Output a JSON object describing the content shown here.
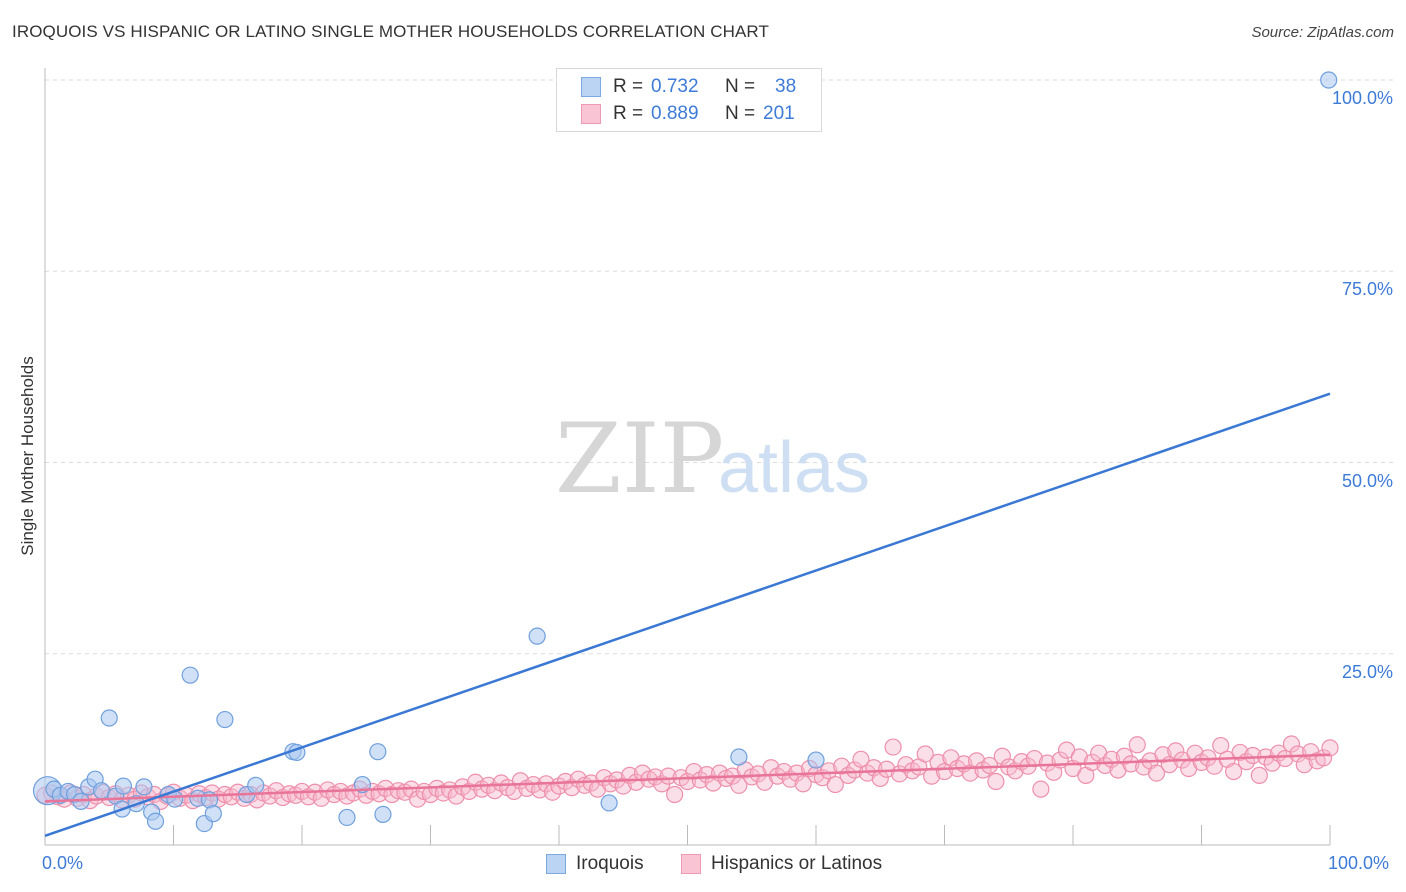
{
  "title": "IROQUOIS VS HISPANIC OR LATINO SINGLE MOTHER HOUSEHOLDS CORRELATION CHART",
  "source": "Source: ZipAtlas.com",
  "watermark": {
    "zip": "ZIP",
    "atlas": "atlas"
  },
  "legend": {
    "series1": {
      "r_label": "R =",
      "r_value": "0.732",
      "n_label": "N =",
      "n_value": "38"
    },
    "series2": {
      "r_label": "R =",
      "r_value": "0.889",
      "n_label": "N =",
      "n_value": "201"
    }
  },
  "chart_data": {
    "type": "scatter",
    "title": "IROQUOIS VS HISPANIC OR LATINO SINGLE MOTHER HOUSEHOLDS CORRELATION CHART",
    "xlabel": "",
    "ylabel": "Single Mother Households",
    "xlim": [
      0,
      100
    ],
    "ylim": [
      0,
      100
    ],
    "x_tick_labels": [
      "0.0%",
      "100.0%"
    ],
    "y_tick_labels": [
      "100.0%",
      "75.0%",
      "50.0%",
      "25.0%"
    ],
    "y_ticks": [
      100,
      75,
      50,
      25
    ],
    "legend_position": "bottom-center",
    "colors": {
      "iroquois_fill": "#aac8f0",
      "iroquois_stroke": "#6f9fdd",
      "iroquois_line": "#3a78d4",
      "hispanic_fill": "#f7b9cb",
      "hispanic_stroke": "#ee8fac",
      "hispanic_line": "#e8749a"
    },
    "series": [
      {
        "name": "Iroquois",
        "r": 0.732,
        "n": 38,
        "trend": {
          "x": [
            0,
            100
          ],
          "y": [
            1.2,
            59
          ]
        },
        "points": [
          {
            "x": 0.2,
            "y": 7.1
          },
          {
            "x": 0.7,
            "y": 7.3
          },
          {
            "x": 1.2,
            "y": 6.5
          },
          {
            "x": 1.8,
            "y": 7
          },
          {
            "x": 2.3,
            "y": 6.6
          },
          {
            "x": 2.8,
            "y": 5.7
          },
          {
            "x": 3.4,
            "y": 7.6
          },
          {
            "x": 3.9,
            "y": 8.6
          },
          {
            "x": 4.4,
            "y": 7.1
          },
          {
            "x": 5.0,
            "y": 16.6
          },
          {
            "x": 5.5,
            "y": 6.4
          },
          {
            "x": 6.0,
            "y": 4.7
          },
          {
            "x": 6.1,
            "y": 7.7
          },
          {
            "x": 7.1,
            "y": 5.4
          },
          {
            "x": 7.7,
            "y": 7.6
          },
          {
            "x": 8.3,
            "y": 4.3
          },
          {
            "x": 8.6,
            "y": 3.1
          },
          {
            "x": 9.6,
            "y": 6.6
          },
          {
            "x": 10.1,
            "y": 6.0
          },
          {
            "x": 11.3,
            "y": 22.2
          },
          {
            "x": 11.9,
            "y": 6.1
          },
          {
            "x": 12.4,
            "y": 2.8
          },
          {
            "x": 12.8,
            "y": 5.9
          },
          {
            "x": 13.1,
            "y": 4.1
          },
          {
            "x": 14.0,
            "y": 16.4
          },
          {
            "x": 15.7,
            "y": 6.6
          },
          {
            "x": 16.4,
            "y": 7.8
          },
          {
            "x": 19.3,
            "y": 12.2
          },
          {
            "x": 19.6,
            "y": 12.1
          },
          {
            "x": 23.5,
            "y": 3.6
          },
          {
            "x": 24.7,
            "y": 7.9
          },
          {
            "x": 25.9,
            "y": 12.2
          },
          {
            "x": 26.3,
            "y": 4.0
          },
          {
            "x": 38.3,
            "y": 27.3
          },
          {
            "x": 43.9,
            "y": 5.5
          },
          {
            "x": 54.0,
            "y": 11.5
          },
          {
            "x": 60.0,
            "y": 11.1
          },
          {
            "x": 99.9,
            "y": 100
          }
        ]
      },
      {
        "name": "Hispanics or Latinos",
        "r": 0.889,
        "n": 201,
        "trend": {
          "x": [
            0,
            100
          ],
          "y": [
            5.7,
            11.8
          ]
        },
        "points": [
          {
            "x": 0.5,
            "y": 6.8
          },
          {
            "x": 1.0,
            "y": 6.3
          },
          {
            "x": 1.5,
            "y": 6.0
          },
          {
            "x": 2.0,
            "y": 6.8
          },
          {
            "x": 2.5,
            "y": 6.1
          },
          {
            "x": 3.0,
            "y": 6.6
          },
          {
            "x": 3.5,
            "y": 5.8
          },
          {
            "x": 4.0,
            "y": 6.4
          },
          {
            "x": 4.5,
            "y": 6.9
          },
          {
            "x": 5.0,
            "y": 6.2
          },
          {
            "x": 5.5,
            "y": 6.7
          },
          {
            "x": 6.0,
            "y": 5.9
          },
          {
            "x": 6.5,
            "y": 6.5
          },
          {
            "x": 7.0,
            "y": 6.0
          },
          {
            "x": 7.5,
            "y": 6.8
          },
          {
            "x": 8.0,
            "y": 6.3
          },
          {
            "x": 8.5,
            "y": 6.6
          },
          {
            "x": 9.0,
            "y": 5.7
          },
          {
            "x": 9.5,
            "y": 6.4
          },
          {
            "x": 10.0,
            "y": 6.9
          },
          {
            "x": 10.5,
            "y": 6.1
          },
          {
            "x": 11.0,
            "y": 6.5
          },
          {
            "x": 11.5,
            "y": 5.8
          },
          {
            "x": 12.0,
            "y": 6.7
          },
          {
            "x": 12.5,
            "y": 6.2
          },
          {
            "x": 13.0,
            "y": 6.8
          },
          {
            "x": 13.5,
            "y": 6.0
          },
          {
            "x": 14.0,
            "y": 6.6
          },
          {
            "x": 14.5,
            "y": 6.3
          },
          {
            "x": 15.0,
            "y": 6.9
          },
          {
            "x": 15.5,
            "y": 6.1
          },
          {
            "x": 16.0,
            "y": 6.6
          },
          {
            "x": 16.5,
            "y": 5.9
          },
          {
            "x": 17.0,
            "y": 6.8
          },
          {
            "x": 17.5,
            "y": 6.4
          },
          {
            "x": 18.0,
            "y": 7.1
          },
          {
            "x": 18.5,
            "y": 6.2
          },
          {
            "x": 19.0,
            "y": 6.7
          },
          {
            "x": 19.5,
            "y": 6.5
          },
          {
            "x": 20.0,
            "y": 7.0
          },
          {
            "x": 20.5,
            "y": 6.3
          },
          {
            "x": 21.0,
            "y": 6.9
          },
          {
            "x": 21.5,
            "y": 6.1
          },
          {
            "x": 22.0,
            "y": 7.2
          },
          {
            "x": 22.5,
            "y": 6.6
          },
          {
            "x": 23.0,
            "y": 7.0
          },
          {
            "x": 23.5,
            "y": 6.4
          },
          {
            "x": 24.0,
            "y": 6.8
          },
          {
            "x": 24.5,
            "y": 7.3
          },
          {
            "x": 25.0,
            "y": 6.5
          },
          {
            "x": 25.5,
            "y": 7.0
          },
          {
            "x": 26.0,
            "y": 6.7
          },
          {
            "x": 26.5,
            "y": 7.4
          },
          {
            "x": 27.0,
            "y": 6.6
          },
          {
            "x": 27.5,
            "y": 7.1
          },
          {
            "x": 28.0,
            "y": 6.9
          },
          {
            "x": 28.5,
            "y": 7.3
          },
          {
            "x": 29.0,
            "y": 6.0
          },
          {
            "x": 29.5,
            "y": 7.0
          },
          {
            "x": 30.0,
            "y": 6.6
          },
          {
            "x": 30.5,
            "y": 7.4
          },
          {
            "x": 31.0,
            "y": 6.8
          },
          {
            "x": 31.5,
            "y": 7.2
          },
          {
            "x": 32.0,
            "y": 6.4
          },
          {
            "x": 32.5,
            "y": 7.6
          },
          {
            "x": 33.0,
            "y": 7.0
          },
          {
            "x": 33.5,
            "y": 8.2
          },
          {
            "x": 34.0,
            "y": 7.3
          },
          {
            "x": 34.5,
            "y": 7.8
          },
          {
            "x": 35.0,
            "y": 7.1
          },
          {
            "x": 35.5,
            "y": 8.1
          },
          {
            "x": 36.0,
            "y": 7.5
          },
          {
            "x": 36.5,
            "y": 7.0
          },
          {
            "x": 37.0,
            "y": 8.4
          },
          {
            "x": 37.5,
            "y": 7.4
          },
          {
            "x": 38.0,
            "y": 7.9
          },
          {
            "x": 38.5,
            "y": 7.2
          },
          {
            "x": 39.0,
            "y": 8.0
          },
          {
            "x": 39.5,
            "y": 6.9
          },
          {
            "x": 40.0,
            "y": 7.7
          },
          {
            "x": 40.5,
            "y": 8.3
          },
          {
            "x": 41.0,
            "y": 7.5
          },
          {
            "x": 41.5,
            "y": 8.6
          },
          {
            "x": 42.0,
            "y": 7.8
          },
          {
            "x": 42.5,
            "y": 8.1
          },
          {
            "x": 43.0,
            "y": 7.3
          },
          {
            "x": 43.5,
            "y": 8.8
          },
          {
            "x": 44.0,
            "y": 8.0
          },
          {
            "x": 44.5,
            "y": 8.5
          },
          {
            "x": 45.0,
            "y": 7.7
          },
          {
            "x": 45.5,
            "y": 9.1
          },
          {
            "x": 46.0,
            "y": 8.2
          },
          {
            "x": 46.5,
            "y": 9.4
          },
          {
            "x": 47.0,
            "y": 8.6
          },
          {
            "x": 47.5,
            "y": 8.9
          },
          {
            "x": 48.0,
            "y": 8.0
          },
          {
            "x": 48.5,
            "y": 9.0
          },
          {
            "x": 49.0,
            "y": 6.6
          },
          {
            "x": 49.5,
            "y": 8.8
          },
          {
            "x": 50.0,
            "y": 8.3
          },
          {
            "x": 50.5,
            "y": 9.6
          },
          {
            "x": 51.0,
            "y": 8.5
          },
          {
            "x": 51.5,
            "y": 9.2
          },
          {
            "x": 52.0,
            "y": 8.1
          },
          {
            "x": 52.5,
            "y": 9.4
          },
          {
            "x": 53.0,
            "y": 8.7
          },
          {
            "x": 53.5,
            "y": 9.0
          },
          {
            "x": 54.0,
            "y": 7.8
          },
          {
            "x": 54.5,
            "y": 9.8
          },
          {
            "x": 55.0,
            "y": 8.9
          },
          {
            "x": 55.5,
            "y": 9.3
          },
          {
            "x": 56.0,
            "y": 8.2
          },
          {
            "x": 56.5,
            "y": 10.1
          },
          {
            "x": 57.0,
            "y": 9.0
          },
          {
            "x": 57.5,
            "y": 9.6
          },
          {
            "x": 58.0,
            "y": 8.6
          },
          {
            "x": 58.5,
            "y": 9.4
          },
          {
            "x": 59.0,
            "y": 8.0
          },
          {
            "x": 59.5,
            "y": 10.0
          },
          {
            "x": 60.0,
            "y": 9.2
          },
          {
            "x": 60.5,
            "y": 8.8
          },
          {
            "x": 61.0,
            "y": 9.7
          },
          {
            "x": 61.5,
            "y": 7.9
          },
          {
            "x": 62.0,
            "y": 10.3
          },
          {
            "x": 62.5,
            "y": 9.1
          },
          {
            "x": 63.0,
            "y": 9.8
          },
          {
            "x": 63.5,
            "y": 11.2
          },
          {
            "x": 64.0,
            "y": 9.4
          },
          {
            "x": 64.5,
            "y": 10.1
          },
          {
            "x": 65.0,
            "y": 8.7
          },
          {
            "x": 65.5,
            "y": 9.9
          },
          {
            "x": 66.0,
            "y": 12.8
          },
          {
            "x": 66.5,
            "y": 9.3
          },
          {
            "x": 67.0,
            "y": 10.5
          },
          {
            "x": 67.5,
            "y": 9.7
          },
          {
            "x": 68.0,
            "y": 10.2
          },
          {
            "x": 68.5,
            "y": 11.9
          },
          {
            "x": 69.0,
            "y": 9.0
          },
          {
            "x": 69.5,
            "y": 10.8
          },
          {
            "x": 70.0,
            "y": 9.6
          },
          {
            "x": 70.5,
            "y": 11.4
          },
          {
            "x": 71.0,
            "y": 10.0
          },
          {
            "x": 71.5,
            "y": 10.6
          },
          {
            "x": 72.0,
            "y": 9.4
          },
          {
            "x": 72.5,
            "y": 11.0
          },
          {
            "x": 73.0,
            "y": 9.8
          },
          {
            "x": 73.5,
            "y": 10.4
          },
          {
            "x": 74.0,
            "y": 8.3
          },
          {
            "x": 74.5,
            "y": 11.6
          },
          {
            "x": 75.0,
            "y": 10.2
          },
          {
            "x": 75.5,
            "y": 9.7
          },
          {
            "x": 76.0,
            "y": 10.9
          },
          {
            "x": 76.5,
            "y": 10.3
          },
          {
            "x": 77.0,
            "y": 11.3
          },
          {
            "x": 77.5,
            "y": 7.3
          },
          {
            "x": 78.0,
            "y": 10.7
          },
          {
            "x": 78.5,
            "y": 9.5
          },
          {
            "x": 79.0,
            "y": 11.1
          },
          {
            "x": 79.5,
            "y": 12.4
          },
          {
            "x": 80.0,
            "y": 10.0
          },
          {
            "x": 80.5,
            "y": 11.5
          },
          {
            "x": 81.0,
            "y": 9.1
          },
          {
            "x": 81.5,
            "y": 10.8
          },
          {
            "x": 82.0,
            "y": 12.0
          },
          {
            "x": 82.5,
            "y": 10.4
          },
          {
            "x": 83.0,
            "y": 11.2
          },
          {
            "x": 83.5,
            "y": 9.8
          },
          {
            "x": 84.0,
            "y": 11.6
          },
          {
            "x": 84.5,
            "y": 10.6
          },
          {
            "x": 85.0,
            "y": 13.1
          },
          {
            "x": 85.5,
            "y": 10.2
          },
          {
            "x": 86.0,
            "y": 11.0
          },
          {
            "x": 86.5,
            "y": 9.4
          },
          {
            "x": 87.0,
            "y": 11.8
          },
          {
            "x": 87.5,
            "y": 10.5
          },
          {
            "x": 88.0,
            "y": 12.3
          },
          {
            "x": 88.5,
            "y": 11.1
          },
          {
            "x": 89.0,
            "y": 10.0
          },
          {
            "x": 89.5,
            "y": 12.0
          },
          {
            "x": 90.0,
            "y": 10.8
          },
          {
            "x": 90.5,
            "y": 11.4
          },
          {
            "x": 91.0,
            "y": 10.3
          },
          {
            "x": 91.5,
            "y": 13.0
          },
          {
            "x": 92.0,
            "y": 11.2
          },
          {
            "x": 92.5,
            "y": 9.6
          },
          {
            "x": 93.0,
            "y": 12.1
          },
          {
            "x": 93.5,
            "y": 10.9
          },
          {
            "x": 94.0,
            "y": 11.7
          },
          {
            "x": 94.5,
            "y": 9.1
          },
          {
            "x": 95.0,
            "y": 11.5
          },
          {
            "x": 95.5,
            "y": 10.7
          },
          {
            "x": 96.0,
            "y": 12.0
          },
          {
            "x": 96.5,
            "y": 11.3
          },
          {
            "x": 97.0,
            "y": 13.2
          },
          {
            "x": 97.5,
            "y": 11.9
          },
          {
            "x": 98.0,
            "y": 10.5
          },
          {
            "x": 98.5,
            "y": 12.2
          },
          {
            "x": 99.0,
            "y": 11.0
          },
          {
            "x": 99.5,
            "y": 11.4
          },
          {
            "x": 100.0,
            "y": 12.7
          },
          {
            "x": 0.0,
            "y": 6.5
          }
        ]
      }
    ]
  },
  "bottom_legend": {
    "series1_label": "Iroquois",
    "series2_label": "Hispanics or Latinos"
  }
}
